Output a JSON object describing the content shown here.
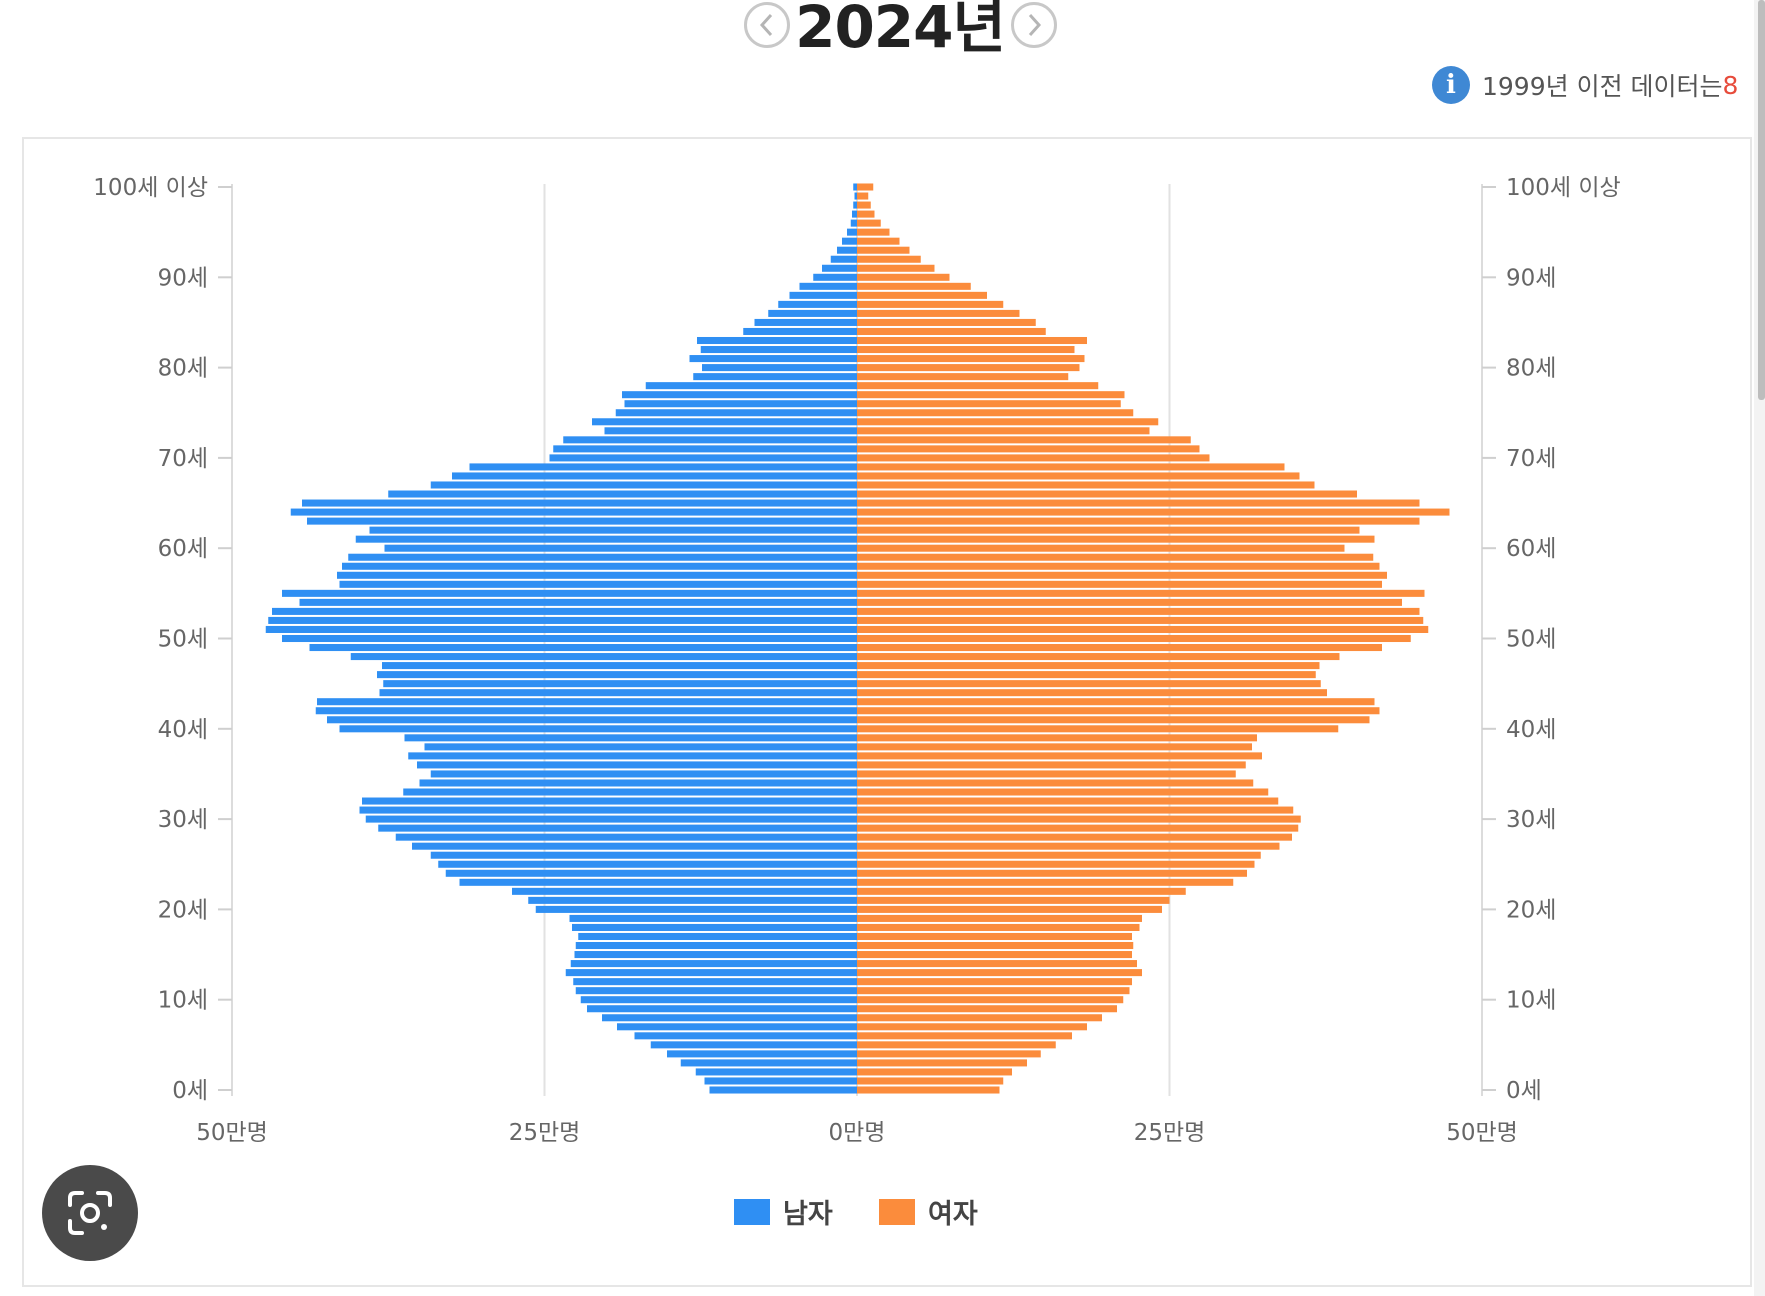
{
  "header": {
    "year": "2024년",
    "info_text": "1999년 이전 데이터는",
    "info_accent": "8"
  },
  "chart_data": {
    "type": "bar",
    "orientation": "horizontal",
    "axis_labels_left": [
      "100세 이상",
      "90세",
      "80세",
      "70세",
      "60세",
      "50세",
      "40세",
      "30세",
      "20세",
      "10세",
      "0세"
    ],
    "axis_labels_right": [
      "100세 이상",
      "90세",
      "80세",
      "70세",
      "60세",
      "50세",
      "40세",
      "30세",
      "20세",
      "10세",
      "0세"
    ],
    "x_tick_labels": [
      "50만명",
      "25만명",
      "0만명",
      "25만명",
      "50만명"
    ],
    "x_unit": "만명",
    "xlim": [
      -50,
      50
    ],
    "legend": [
      "남자",
      "여자"
    ],
    "legend_position": "bottom-center",
    "colors": {
      "male": "#2f8ff3",
      "female": "#fb8c3c"
    },
    "ages": [
      0,
      1,
      2,
      3,
      4,
      5,
      6,
      7,
      8,
      9,
      10,
      11,
      12,
      13,
      14,
      15,
      16,
      17,
      18,
      19,
      20,
      21,
      22,
      23,
      24,
      25,
      26,
      27,
      28,
      29,
      30,
      31,
      32,
      33,
      34,
      35,
      36,
      37,
      38,
      39,
      40,
      41,
      42,
      43,
      44,
      45,
      46,
      47,
      48,
      49,
      50,
      51,
      52,
      53,
      54,
      55,
      56,
      57,
      58,
      59,
      60,
      61,
      62,
      63,
      64,
      65,
      66,
      67,
      68,
      69,
      70,
      71,
      72,
      73,
      74,
      75,
      76,
      77,
      78,
      79,
      80,
      81,
      82,
      83,
      84,
      85,
      86,
      87,
      88,
      89,
      90,
      91,
      92,
      93,
      94,
      95,
      96,
      97,
      98,
      99,
      100
    ],
    "series": [
      {
        "name": "남자",
        "values": [
          11.8,
          12.2,
          12.9,
          14.1,
          15.2,
          16.5,
          17.8,
          19.2,
          20.4,
          21.6,
          22.1,
          22.5,
          22.7,
          23.3,
          22.9,
          22.6,
          22.5,
          22.3,
          22.8,
          23.0,
          25.7,
          26.3,
          27.6,
          31.8,
          32.9,
          33.5,
          34.1,
          35.6,
          36.9,
          38.3,
          39.3,
          39.8,
          39.6,
          36.3,
          35.0,
          34.1,
          35.2,
          35.9,
          34.6,
          36.2,
          41.4,
          42.4,
          43.3,
          43.2,
          38.2,
          37.9,
          38.4,
          38.0,
          40.5,
          43.8,
          46.0,
          47.3,
          47.1,
          46.8,
          44.6,
          46.0,
          41.4,
          41.6,
          41.2,
          40.7,
          37.8,
          40.1,
          39.0,
          44.0,
          45.3,
          44.4,
          37.5,
          34.1,
          32.4,
          31.0,
          24.6,
          24.3,
          23.5,
          20.2,
          21.2,
          19.3,
          18.6,
          18.8,
          16.9,
          13.1,
          12.4,
          13.4,
          12.5,
          12.8,
          9.1,
          8.2,
          7.1,
          6.3,
          5.4,
          4.6,
          3.5,
          2.8,
          2.1,
          1.6,
          1.2,
          0.8,
          0.5,
          0.4,
          0.3,
          0.2,
          0.3
        ]
      },
      {
        "name": "여자",
        "values": [
          11.4,
          11.7,
          12.4,
          13.6,
          14.7,
          15.9,
          17.2,
          18.4,
          19.6,
          20.8,
          21.3,
          21.8,
          22.0,
          22.8,
          22.4,
          22.0,
          22.1,
          22.0,
          22.6,
          22.8,
          24.4,
          25.0,
          26.3,
          30.1,
          31.2,
          31.8,
          32.3,
          33.8,
          34.8,
          35.3,
          35.5,
          34.9,
          33.7,
          32.9,
          31.7,
          30.3,
          31.1,
          32.4,
          31.6,
          32.0,
          38.5,
          41.0,
          41.8,
          41.4,
          37.6,
          37.1,
          36.7,
          37.0,
          38.6,
          42.0,
          44.3,
          45.7,
          45.3,
          45.0,
          43.6,
          45.4,
          42.0,
          42.4,
          41.8,
          41.3,
          39.0,
          41.4,
          40.2,
          45.0,
          47.4,
          45.0,
          40.0,
          36.6,
          35.4,
          34.2,
          28.2,
          27.4,
          26.7,
          23.4,
          24.1,
          22.1,
          21.1,
          21.4,
          19.3,
          16.9,
          17.8,
          18.2,
          17.4,
          18.4,
          15.1,
          14.3,
          13.0,
          11.7,
          10.4,
          9.1,
          7.4,
          6.2,
          5.1,
          4.2,
          3.4,
          2.6,
          1.9,
          1.4,
          1.1,
          0.9,
          1.3
        ]
      }
    ]
  }
}
